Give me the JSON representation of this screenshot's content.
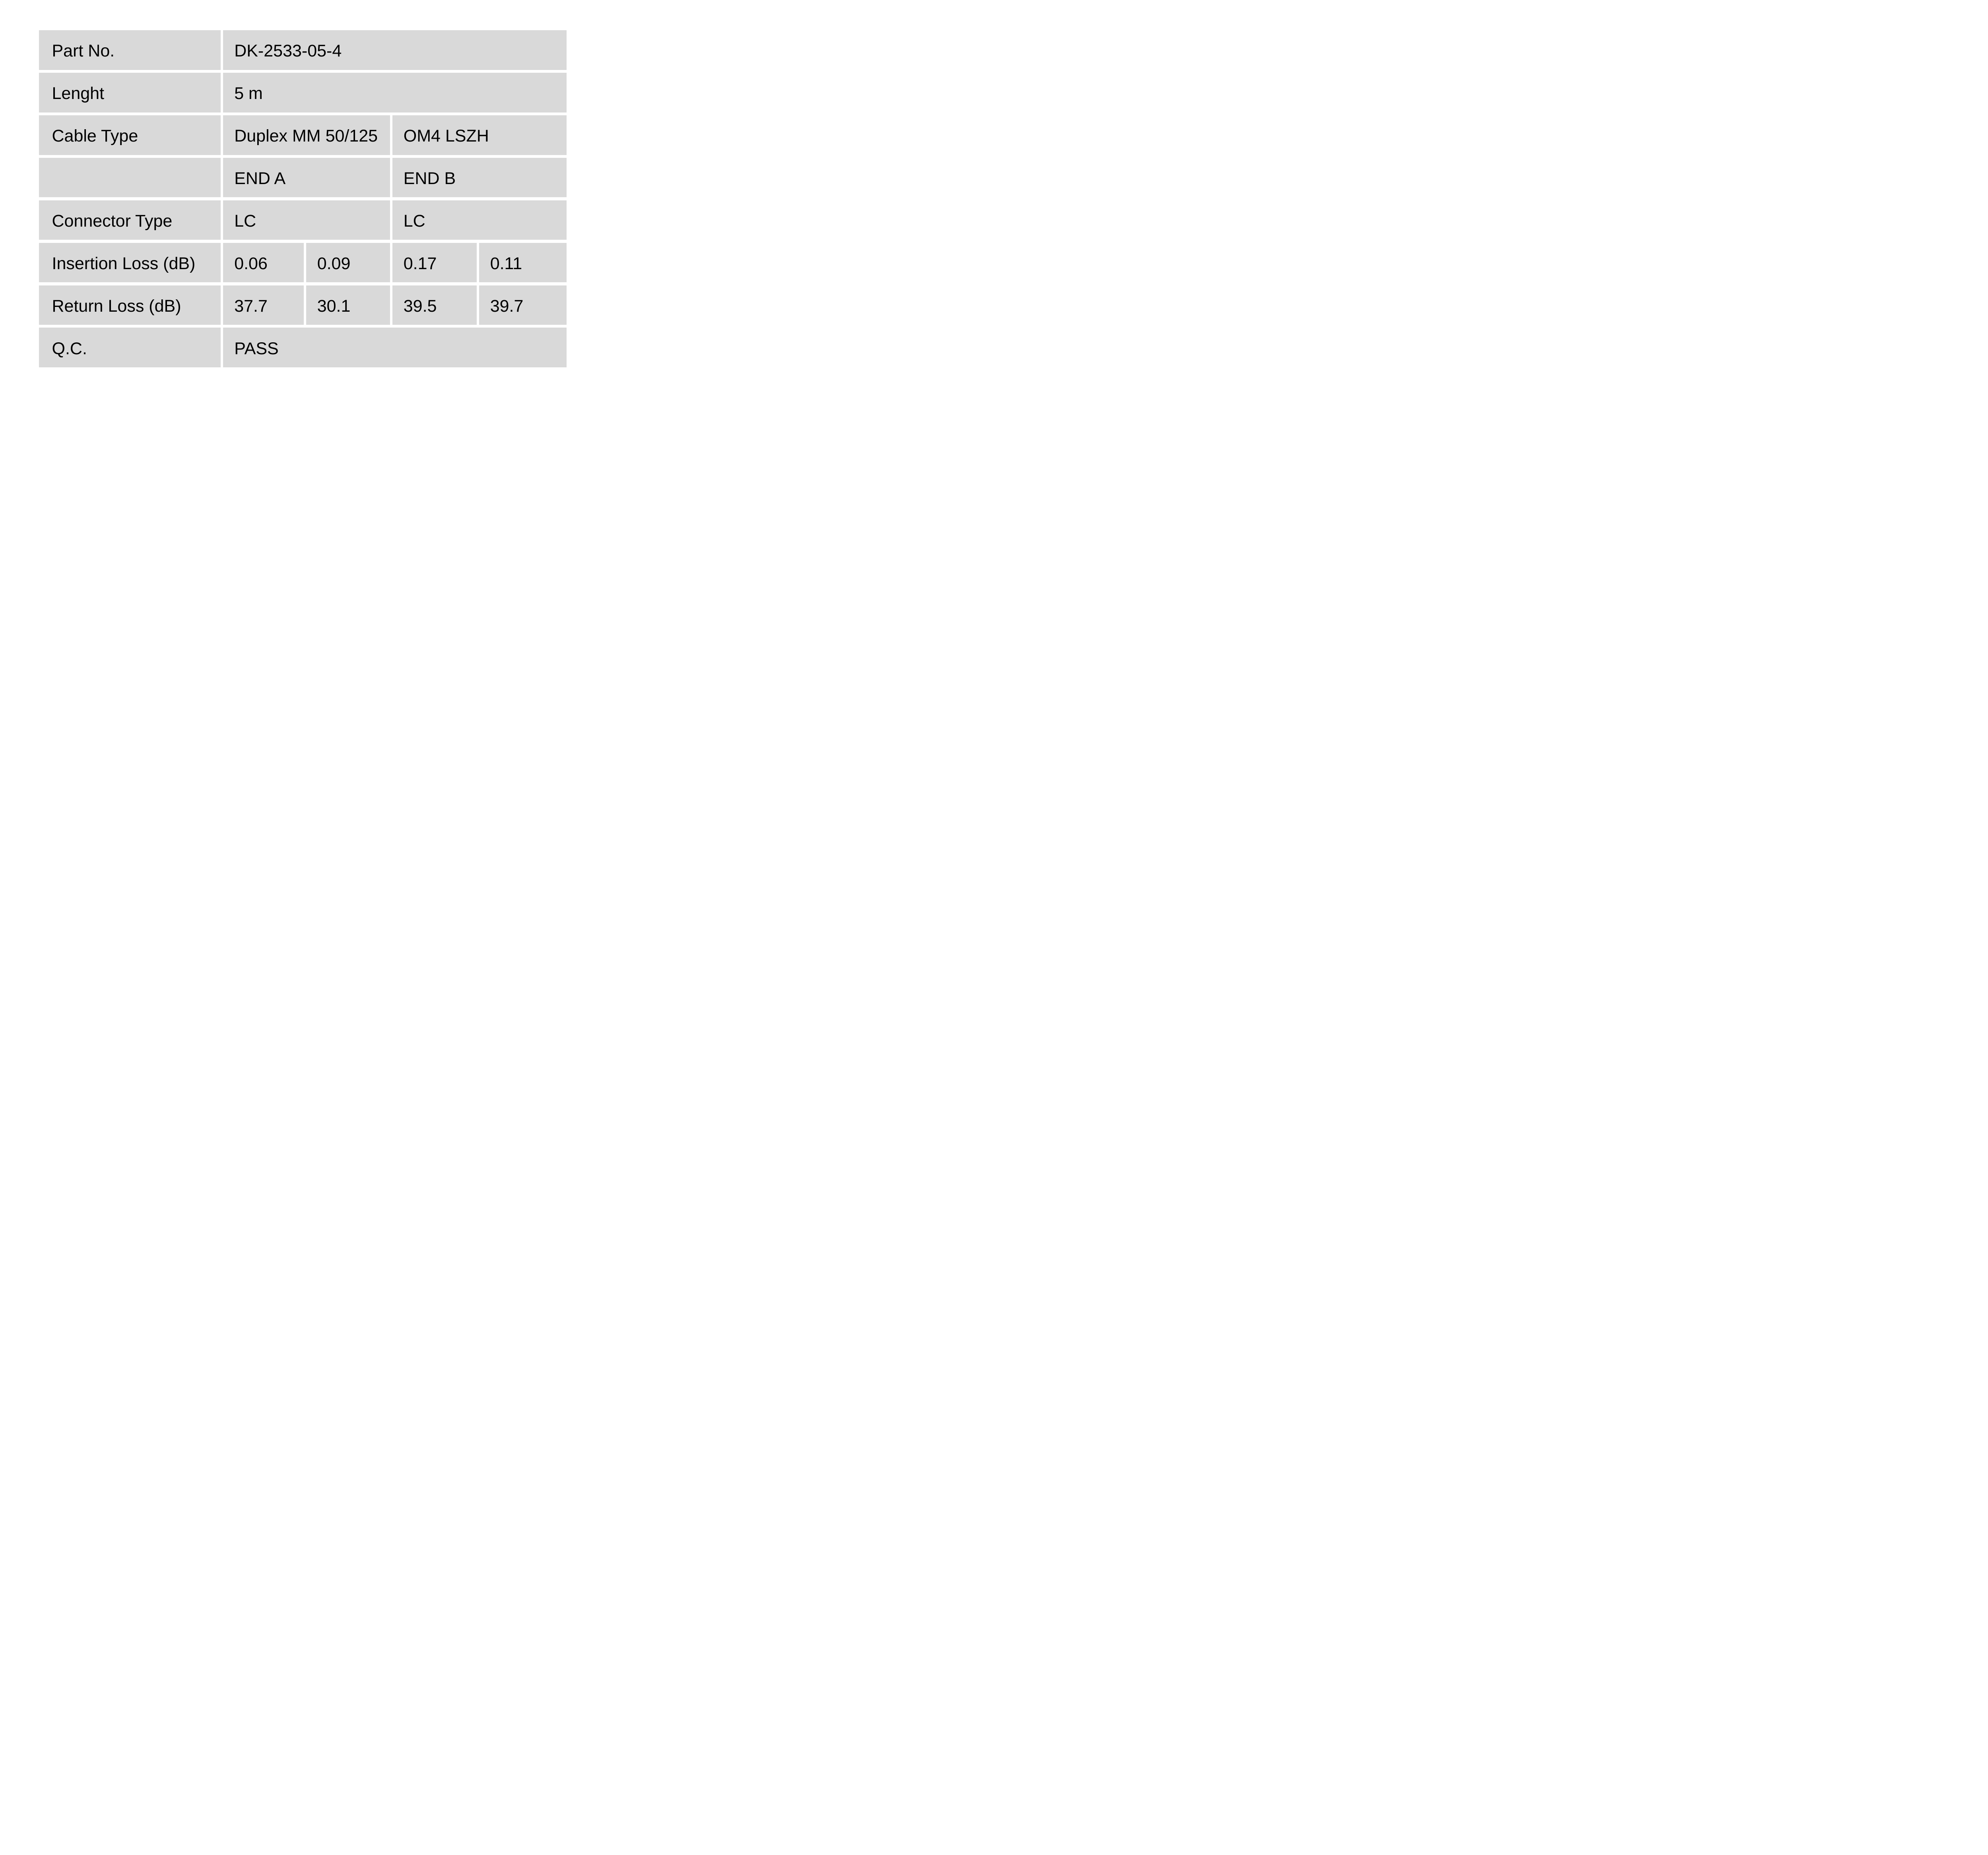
{
  "colors": {
    "page_bg": "#ffffff",
    "cell_bg": "#d9d9d9",
    "text": "#000000"
  },
  "table": {
    "rows": [
      {
        "label": "Part No.",
        "values": [
          "DK-2533-05-4"
        ]
      },
      {
        "label": "Lenght",
        "values": [
          "5 m"
        ]
      },
      {
        "label": "Cable Type",
        "values": [
          "Duplex MM 50/125",
          "OM4 LSZH"
        ]
      },
      {
        "label": "",
        "values": [
          "END A",
          "END B"
        ]
      },
      {
        "label": "Connector Type",
        "values": [
          "LC",
          "LC"
        ]
      },
      {
        "label": "Insertion Loss (dB)",
        "values": [
          "0.06",
          "0.09",
          "0.17",
          "0.11"
        ]
      },
      {
        "label": "Return Loss (dB)",
        "values": [
          "37.7",
          "30.1",
          "39.5",
          "39.7"
        ]
      },
      {
        "label": "Q.C.",
        "values": [
          "PASS"
        ]
      }
    ]
  }
}
